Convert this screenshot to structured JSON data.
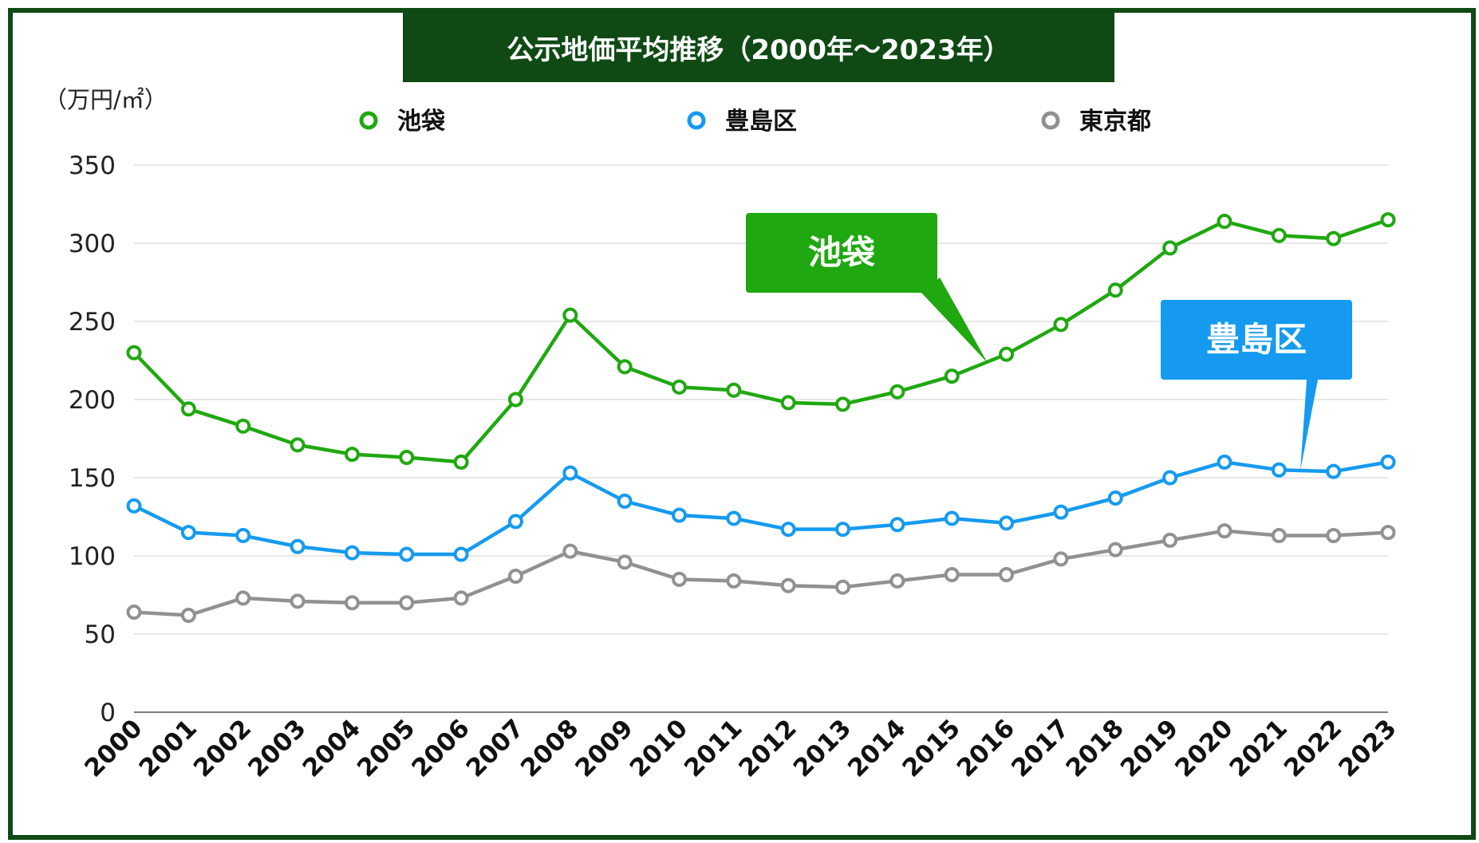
{
  "chart_data": {
    "type": "line",
    "title": "公示地価平均推移（2000年〜2023年）",
    "unit_label": "（万円/㎡）",
    "x": [
      "2000",
      "2001",
      "2002",
      "2003",
      "2004",
      "2005",
      "2006",
      "2007",
      "2008",
      "2009",
      "2010",
      "2011",
      "2012",
      "2013",
      "2014",
      "2015",
      "2016",
      "2017",
      "2018",
      "2019",
      "2020",
      "2021",
      "2022",
      "2023"
    ],
    "ylim": [
      0,
      350
    ],
    "yticks": [
      "0",
      "50",
      "100",
      "150",
      "200",
      "250",
      "300",
      "350"
    ],
    "grid": true,
    "legend_position": "top",
    "series": [
      {
        "name": "池袋",
        "color": "#1fa80f",
        "values": [
          230,
          194,
          183,
          171,
          165,
          163,
          160,
          200,
          254,
          221,
          208,
          206,
          198,
          197,
          205,
          215,
          229,
          248,
          270,
          297,
          314,
          305,
          303,
          315
        ]
      },
      {
        "name": "豊島区",
        "color": "#159af0",
        "values": [
          132,
          115,
          113,
          106,
          102,
          101,
          101,
          122,
          153,
          135,
          126,
          124,
          117,
          117,
          120,
          124,
          121,
          128,
          137,
          150,
          160,
          155,
          154,
          160
        ]
      },
      {
        "name": "東京都",
        "color": "#919191",
        "values": [
          64,
          62,
          73,
          71,
          70,
          70,
          73,
          87,
          103,
          96,
          85,
          84,
          81,
          80,
          84,
          88,
          88,
          98,
          104,
          110,
          116,
          113,
          113,
          115
        ]
      }
    ],
    "annotations": [
      {
        "text": "池袋",
        "series": "池袋",
        "color": "#1fa80f"
      },
      {
        "text": "豊島区",
        "series": "豊島区",
        "color": "#159af0"
      }
    ]
  }
}
